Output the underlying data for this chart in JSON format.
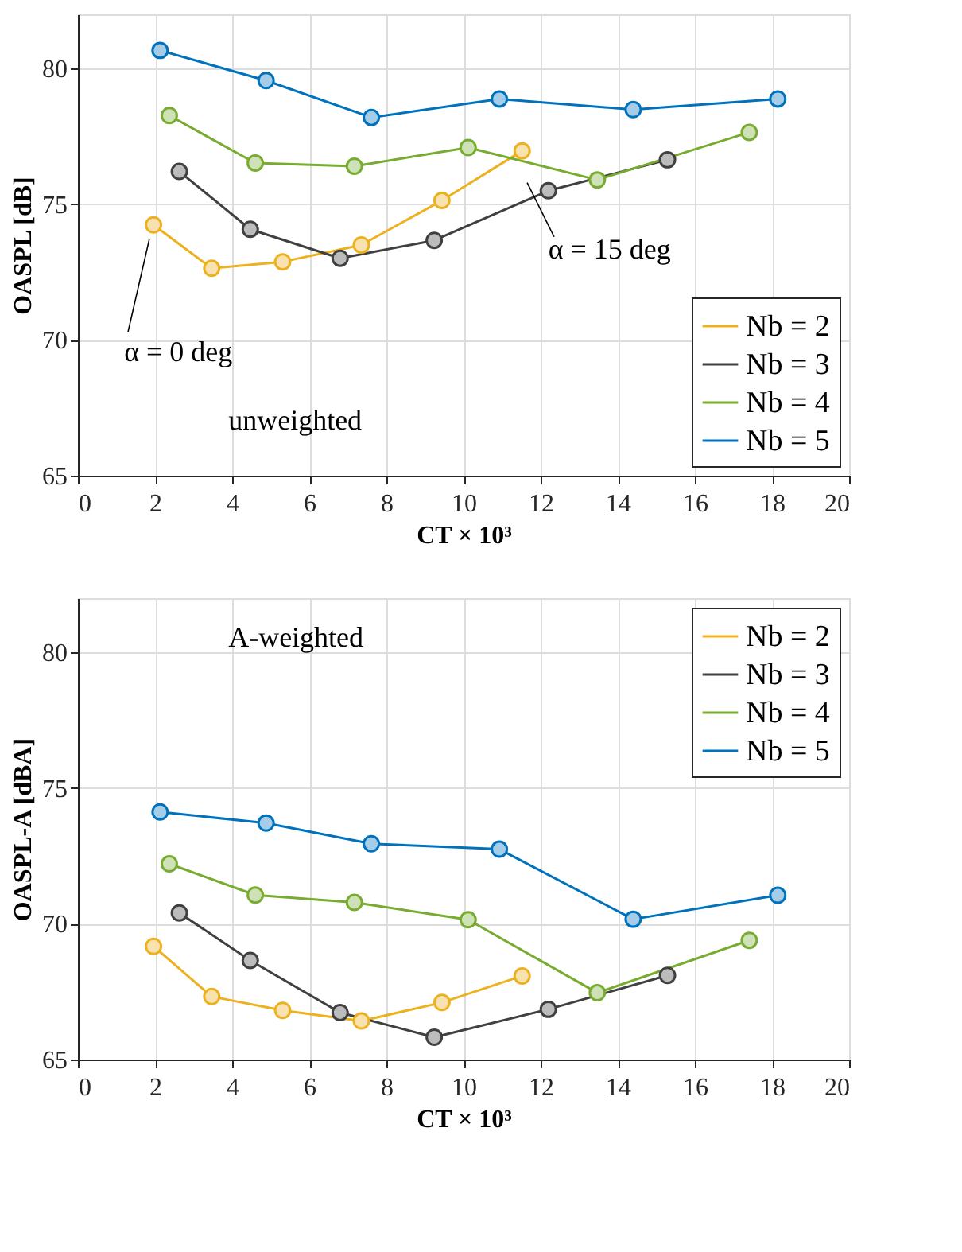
{
  "chart_data": [
    {
      "type": "line",
      "xlabel": "CT × 10³",
      "ylabel": "OASPL [dB]",
      "xlim": [
        0,
        20
      ],
      "xticks": [
        0,
        2,
        4,
        6,
        8,
        10,
        12,
        14,
        16,
        18,
        20
      ],
      "ylim": [
        65,
        82
      ],
      "yticks": [
        65,
        70,
        75,
        80
      ],
      "grid": true,
      "legend": "bottom right",
      "marker": "circle",
      "line_style": "solid",
      "annotations": [
        "α = 0 deg",
        "α = 15 deg",
        "unweighted"
      ],
      "series": [
        {
          "name": "Nb = 2",
          "color": "#edb120",
          "x": [
            1.96,
            3.47,
            5.31,
            7.35,
            9.44,
            11.52
          ],
          "values": [
            74.24,
            72.64,
            72.88,
            73.5,
            75.14,
            76.97
          ]
        },
        {
          "name": "Nb = 3",
          "color": "#404040",
          "x": [
            2.63,
            4.47,
            6.8,
            9.24,
            12.2,
            15.29
          ],
          "values": [
            76.21,
            74.08,
            73.01,
            73.67,
            75.5,
            76.64
          ]
        },
        {
          "name": "Nb = 4",
          "color": "#77ac30",
          "x": [
            2.37,
            4.6,
            7.17,
            10.12,
            13.47,
            17.41
          ],
          "values": [
            78.27,
            76.52,
            76.4,
            77.09,
            75.9,
            77.65
          ]
        },
        {
          "name": "Nb = 5",
          "color": "#0072bd",
          "x": [
            2.13,
            4.88,
            7.61,
            10.93,
            14.4,
            18.15
          ],
          "values": [
            80.67,
            79.56,
            78.2,
            78.88,
            78.49,
            78.88
          ]
        }
      ]
    },
    {
      "type": "line",
      "xlabel": "CT × 10³",
      "ylabel": "OASPL-A [dBA]",
      "xlim": [
        0,
        20
      ],
      "xticks": [
        0,
        2,
        4,
        6,
        8,
        10,
        12,
        14,
        16,
        18,
        20
      ],
      "ylim": [
        65,
        82
      ],
      "yticks": [
        65,
        70,
        75,
        80
      ],
      "grid": true,
      "legend": "top right",
      "marker": "circle",
      "line_style": "solid",
      "annotations": [
        "A-weighted"
      ],
      "series": [
        {
          "name": "Nb = 2",
          "color": "#edb120",
          "x": [
            1.96,
            3.47,
            5.31,
            7.35,
            9.44,
            11.52
          ],
          "values": [
            69.17,
            67.32,
            66.81,
            66.42,
            67.1,
            68.08
          ]
        },
        {
          "name": "Nb = 3",
          "color": "#404040",
          "x": [
            2.63,
            4.47,
            6.8,
            9.24,
            12.2,
            15.29
          ],
          "values": [
            70.4,
            68.65,
            66.73,
            65.82,
            66.85,
            68.1
          ]
        },
        {
          "name": "Nb = 4",
          "color": "#77ac30",
          "x": [
            2.37,
            4.6,
            7.17,
            10.12,
            13.47,
            17.41
          ],
          "values": [
            72.21,
            71.06,
            70.79,
            70.15,
            67.46,
            69.39
          ]
        },
        {
          "name": "Nb = 5",
          "color": "#0072bd",
          "x": [
            2.13,
            4.88,
            7.61,
            10.93,
            14.4,
            18.15
          ],
          "values": [
            74.12,
            73.71,
            72.95,
            72.75,
            70.17,
            71.05
          ]
        }
      ]
    }
  ]
}
